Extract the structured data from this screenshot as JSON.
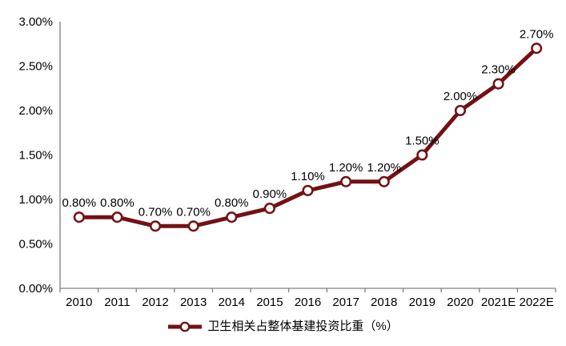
{
  "chart_data": {
    "type": "line",
    "title": "",
    "xlabel": "",
    "ylabel": "",
    "categories": [
      "2010",
      "2011",
      "2012",
      "2013",
      "2014",
      "2015",
      "2016",
      "2017",
      "2018",
      "2019",
      "2020",
      "2021E",
      "2022E"
    ],
    "series": [
      {
        "name": "卫生相关占整体基建投资比重（%）",
        "values": [
          0.8,
          0.8,
          0.7,
          0.7,
          0.8,
          0.9,
          1.1,
          1.2,
          1.2,
          1.5,
          2.0,
          2.3,
          2.7
        ],
        "point_labels": [
          "0.80%",
          "0.80%",
          "0.70%",
          "0.70%",
          "0.80%",
          "0.90%",
          "1.10%",
          "1.20%",
          "1.20%",
          "1.50%",
          "2.00%",
          "2.30%",
          "2.70%"
        ]
      }
    ],
    "y_axis": {
      "min": 0,
      "max": 3,
      "tick_values": [
        0,
        0.5,
        1,
        1.5,
        2,
        2.5,
        3
      ],
      "tick_labels": [
        "0.00%",
        "0.50%",
        "1.00%",
        "1.50%",
        "2.00%",
        "2.50%",
        "3.00%"
      ]
    },
    "grid": "off",
    "legend_position": "bottom",
    "colors": {
      "line": "#731114",
      "marker_fill": "#ffffff",
      "axis": "#7f7f7f",
      "text": "#000000"
    }
  }
}
